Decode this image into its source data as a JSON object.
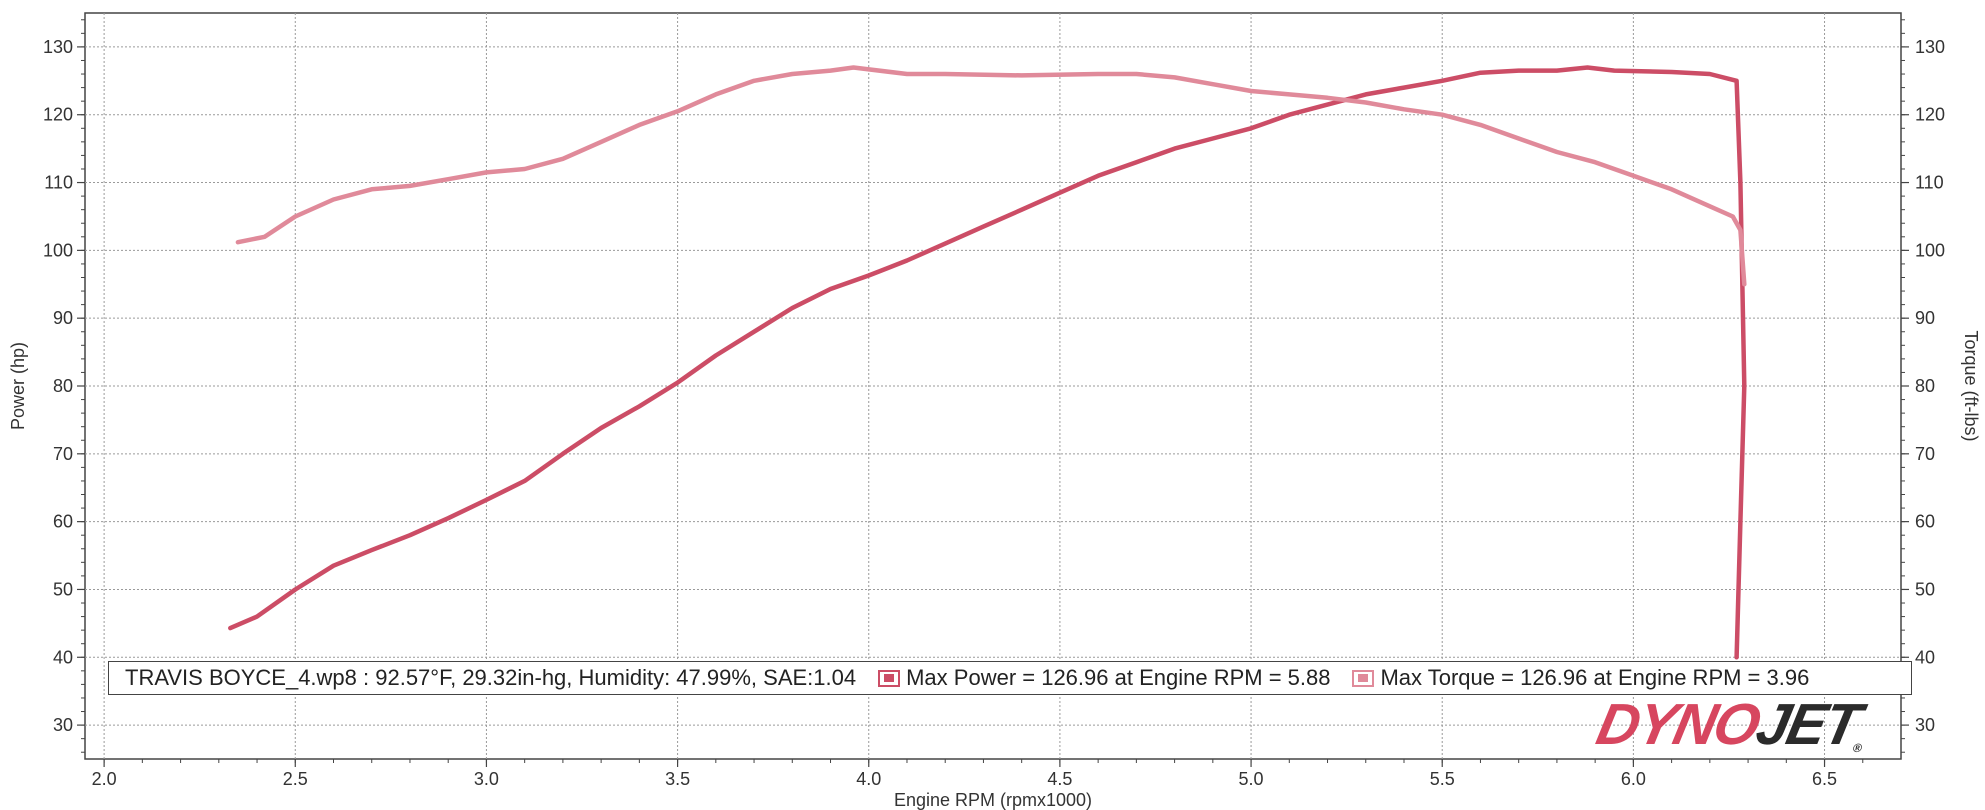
{
  "chart_data": {
    "type": "line",
    "xlabel": "Engine RPM (rpmx1000)",
    "ylabel": "Power (hp)",
    "y2label": "Torque (ft-lbs)",
    "xlim": [
      1.95,
      6.7
    ],
    "ylim": [
      25,
      135
    ],
    "y2lim": [
      25,
      135
    ],
    "xticks": [
      "2.0",
      "2.5",
      "3.0",
      "3.5",
      "4.0",
      "4.5",
      "5.0",
      "5.5",
      "6.0",
      "6.5"
    ],
    "yticks": [
      "30",
      "40",
      "50",
      "60",
      "70",
      "80",
      "90",
      "100",
      "110",
      "120",
      "130"
    ],
    "grid": true,
    "series": [
      {
        "name": "Max Power",
        "axis": "left",
        "color": "#cc4d66",
        "points": [
          [
            2.33,
            44.3
          ],
          [
            2.4,
            46
          ],
          [
            2.5,
            50
          ],
          [
            2.6,
            53.5
          ],
          [
            2.7,
            55.8
          ],
          [
            2.8,
            58
          ],
          [
            2.9,
            60.5
          ],
          [
            3.0,
            63.2
          ],
          [
            3.1,
            66
          ],
          [
            3.2,
            70
          ],
          [
            3.3,
            73.8
          ],
          [
            3.4,
            77
          ],
          [
            3.5,
            80.5
          ],
          [
            3.6,
            84.5
          ],
          [
            3.7,
            88
          ],
          [
            3.8,
            91.5
          ],
          [
            3.9,
            94.3
          ],
          [
            4.0,
            96.3
          ],
          [
            4.1,
            98.5
          ],
          [
            4.2,
            101
          ],
          [
            4.3,
            103.5
          ],
          [
            4.4,
            106
          ],
          [
            4.5,
            108.5
          ],
          [
            4.6,
            111
          ],
          [
            4.7,
            113
          ],
          [
            4.8,
            115
          ],
          [
            4.9,
            116.5
          ],
          [
            5.0,
            118
          ],
          [
            5.1,
            120
          ],
          [
            5.2,
            121.5
          ],
          [
            5.3,
            123
          ],
          [
            5.4,
            124
          ],
          [
            5.5,
            125
          ],
          [
            5.6,
            126.2
          ],
          [
            5.7,
            126.5
          ],
          [
            5.8,
            126.5
          ],
          [
            5.88,
            126.96
          ],
          [
            5.95,
            126.5
          ],
          [
            6.1,
            126.3
          ],
          [
            6.2,
            126
          ],
          [
            6.27,
            125
          ],
          [
            6.28,
            110
          ],
          [
            6.29,
            80
          ],
          [
            6.28,
            60
          ],
          [
            6.27,
            40
          ]
        ]
      },
      {
        "name": "Max Torque",
        "axis": "right",
        "color": "#e08a9a",
        "points": [
          [
            2.35,
            101.2
          ],
          [
            2.42,
            102
          ],
          [
            2.5,
            105
          ],
          [
            2.6,
            107.5
          ],
          [
            2.7,
            109
          ],
          [
            2.8,
            109.5
          ],
          [
            2.9,
            110.5
          ],
          [
            3.0,
            111.5
          ],
          [
            3.1,
            112
          ],
          [
            3.2,
            113.5
          ],
          [
            3.3,
            116
          ],
          [
            3.4,
            118.5
          ],
          [
            3.5,
            120.5
          ],
          [
            3.6,
            123
          ],
          [
            3.7,
            125
          ],
          [
            3.8,
            126
          ],
          [
            3.9,
            126.5
          ],
          [
            3.96,
            126.96
          ],
          [
            4.1,
            126
          ],
          [
            4.2,
            126
          ],
          [
            4.4,
            125.8
          ],
          [
            4.6,
            126
          ],
          [
            4.7,
            126
          ],
          [
            4.8,
            125.5
          ],
          [
            4.9,
            124.5
          ],
          [
            5.0,
            123.5
          ],
          [
            5.1,
            123
          ],
          [
            5.2,
            122.5
          ],
          [
            5.3,
            121.8
          ],
          [
            5.4,
            120.8
          ],
          [
            5.5,
            120
          ],
          [
            5.6,
            118.5
          ],
          [
            5.7,
            116.5
          ],
          [
            5.8,
            114.5
          ],
          [
            5.9,
            113
          ],
          [
            6.0,
            111
          ],
          [
            6.1,
            109
          ],
          [
            6.2,
            106.5
          ],
          [
            6.26,
            105
          ],
          [
            6.28,
            103
          ],
          [
            6.29,
            95
          ]
        ]
      }
    ]
  },
  "legend": {
    "run_info": "TRAVIS BOYCE_4.wp8 : 92.57°F, 29.32in-hg, Humidity: 47.99%, SAE:1.04",
    "power_label": "Max Power = 126.96 at Engine RPM = 5.88",
    "torque_label": "Max Torque = 126.96 at Engine RPM = 3.96"
  },
  "brand": {
    "part1": "DYNO",
    "part2": "JET",
    "mark": "®"
  }
}
